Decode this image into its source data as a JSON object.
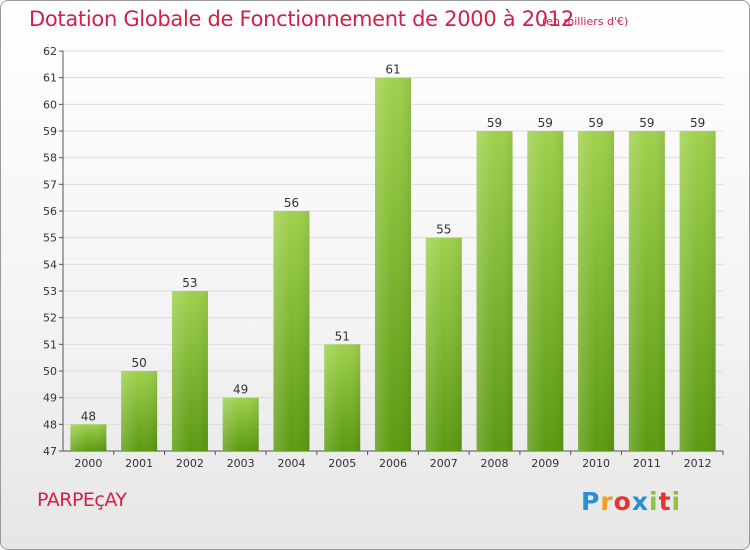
{
  "title": "Dotation Globale de Fonctionnement de 2000 à 2012",
  "subtitle": "(en milliers d'€)",
  "commune": "PARPEçAY",
  "logo": {
    "letters": [
      "P",
      "r",
      "o",
      "x",
      "i",
      "t",
      "i"
    ],
    "colors": [
      "#2a8fd6",
      "#f39c1f",
      "#e8342e",
      "#2a8fd6",
      "#8bc43f",
      "#e8342e",
      "#8bc43f"
    ]
  },
  "colors": {
    "title": "#d2204a",
    "bar_top": "#9fd14d",
    "bar_bottom": "#5c9a12",
    "grid": "#dcdcdc"
  },
  "chart_data": {
    "type": "bar",
    "categories": [
      "2000",
      "2001",
      "2002",
      "2003",
      "2004",
      "2005",
      "2006",
      "2007",
      "2008",
      "2009",
      "2010",
      "2011",
      "2012"
    ],
    "values": [
      48,
      50,
      53,
      49,
      56,
      51,
      61,
      55,
      59,
      59,
      59,
      59,
      59
    ],
    "ylim": [
      47,
      62
    ],
    "yticks": [
      47,
      48,
      49,
      50,
      51,
      52,
      53,
      54,
      55,
      56,
      57,
      58,
      59,
      60,
      61,
      62
    ],
    "grid": true,
    "legend": "none"
  }
}
